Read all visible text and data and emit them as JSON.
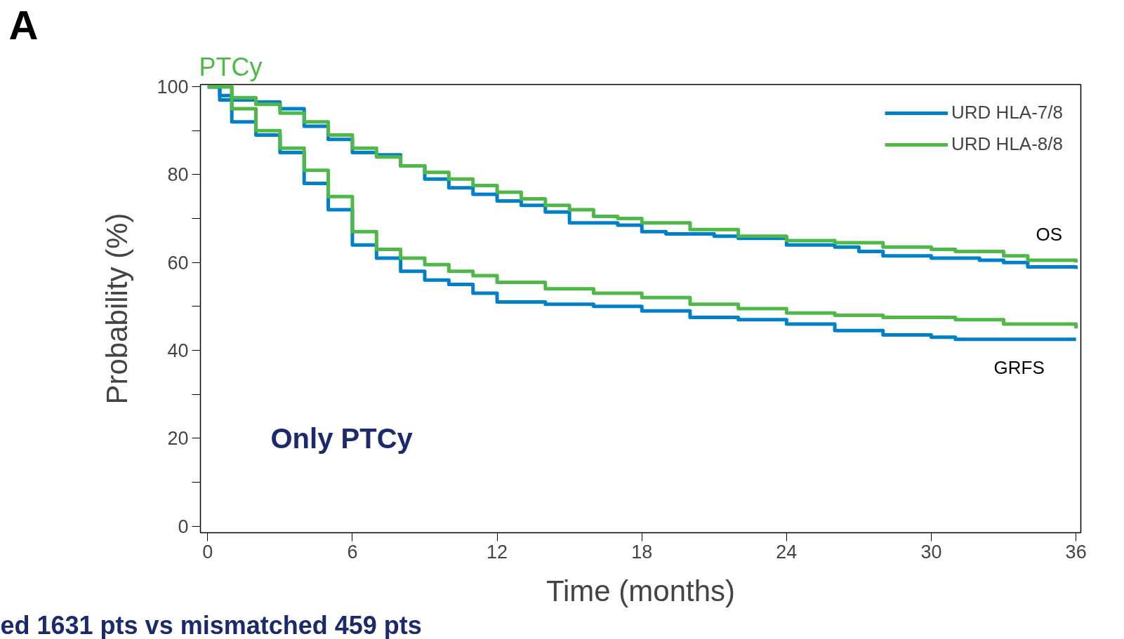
{
  "chart_data": {
    "type": "step",
    "title": "PTCy",
    "xlabel": "Time (months)",
    "ylabel": "Probability (%)",
    "xlim": [
      -0.3,
      36.2
    ],
    "ylim": [
      -1.5,
      100.5
    ],
    "xticks": [
      0,
      6,
      12,
      18,
      24,
      30,
      36
    ],
    "yticks": [
      0,
      {
        "value": 10,
        "label": null
      },
      20,
      {
        "value": 30,
        "label": null
      },
      40,
      {
        "value": 50,
        "label": null
      },
      60,
      {
        "value": 70,
        "label": null
      },
      80,
      {
        "value": 90,
        "label": null
      },
      100
    ],
    "grid": false,
    "legend": "top right",
    "marker": "none",
    "line_style": "solid",
    "series": [
      {
        "name": "URD HLA-7/8",
        "color": "#0080c8",
        "x": [
          0,
          0.5,
          1,
          2,
          3,
          4,
          5,
          6,
          7,
          8,
          9,
          10,
          11,
          12,
          13,
          14,
          15,
          16,
          17,
          18,
          19,
          21,
          22,
          24,
          26,
          27,
          28,
          30,
          32,
          33,
          34,
          36
        ],
        "values": [
          100,
          98,
          97,
          96.5,
          95,
          91,
          88,
          85,
          84.5,
          82,
          79,
          77,
          75.5,
          74,
          73,
          71.5,
          69,
          69,
          68.5,
          67,
          66.5,
          66,
          65.5,
          64,
          63.5,
          62.5,
          61.5,
          61,
          60.5,
          60,
          59,
          58.5
        ]
      },
      {
        "name": "URD HLA-8/8",
        "color": "#4fb848",
        "x": [
          0,
          1,
          2,
          3,
          4,
          5,
          6,
          7,
          8,
          9,
          10,
          11,
          12,
          13,
          14,
          15,
          16,
          17,
          18,
          20,
          22,
          24,
          26,
          28,
          30,
          31,
          33,
          34,
          36
        ],
        "values": [
          100,
          97.5,
          96,
          94,
          92,
          89,
          86,
          84,
          82,
          80.5,
          79,
          77.5,
          76,
          74.5,
          73,
          72,
          70.5,
          70,
          69,
          67.5,
          66,
          65,
          64.5,
          63.5,
          63,
          62.5,
          61.5,
          60.5,
          60
        ]
      },
      {
        "color": "#0080c8",
        "x": [
          0,
          0.5,
          1,
          2,
          3,
          4,
          5,
          6,
          7,
          8,
          9,
          10,
          11,
          12,
          14,
          16,
          18,
          20,
          22,
          24,
          26,
          28,
          30,
          31,
          36
        ],
        "values": [
          100,
          97,
          92,
          89,
          85,
          78,
          72,
          64,
          61,
          58,
          56,
          55,
          53,
          51,
          50.5,
          50,
          49,
          47.5,
          47,
          46,
          44.5,
          43.5,
          43,
          42.5,
          42.5
        ]
      },
      {
        "color": "#4fb848",
        "x": [
          0,
          1,
          2,
          3,
          4,
          5,
          6,
          7,
          8,
          9,
          10,
          11,
          12,
          14,
          16,
          18,
          20,
          22,
          24,
          26,
          28,
          30,
          31,
          33,
          36
        ],
        "values": [
          100,
          95,
          90,
          86,
          81,
          75,
          67,
          63,
          61,
          59.5,
          58,
          57,
          55.5,
          54,
          53,
          52,
          50.5,
          49.5,
          48.5,
          48,
          47.5,
          47.5,
          47,
          46,
          45
        ]
      }
    ],
    "annotations": [
      "A",
      "Only PTCy",
      "ed 1631 pts vs mismatched 459 pts",
      "OS",
      "GRFS"
    ]
  }
}
